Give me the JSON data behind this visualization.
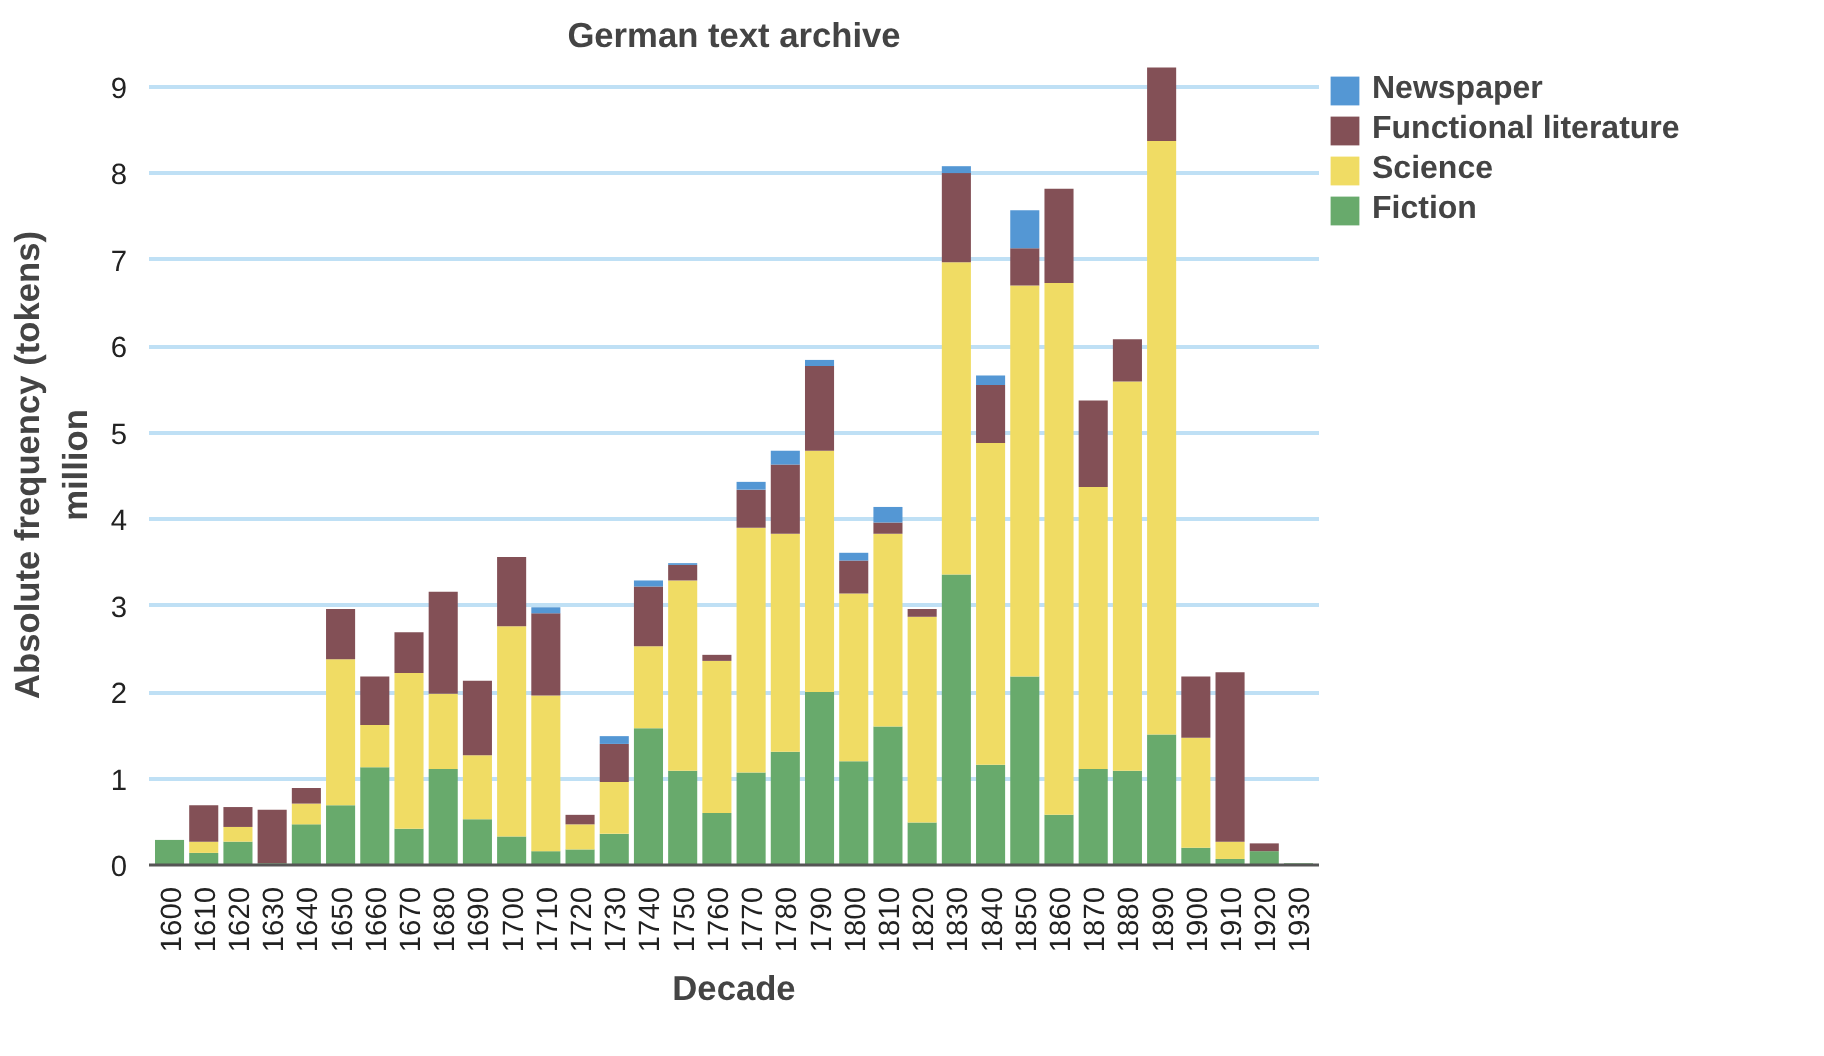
{
  "chart_data": {
    "type": "bar",
    "title": "German text archive",
    "xlabel": "Decade",
    "ylabel": "Absolute frequency (tokens)\nmillion",
    "categories": [
      "1600",
      "1610",
      "1620",
      "1630",
      "1640",
      "1650",
      "1660",
      "1670",
      "1680",
      "1690",
      "1700",
      "1710",
      "1720",
      "1730",
      "1740",
      "1750",
      "1760",
      "1770",
      "1780",
      "1790",
      "1800",
      "1810",
      "1820",
      "1830",
      "1840",
      "1850",
      "1860",
      "1870",
      "1880",
      "1890",
      "1900",
      "1910",
      "1920",
      "1930"
    ],
    "stacked": true,
    "ylim": [
      0,
      9.25
    ],
    "yticks": [
      0,
      1,
      2,
      3,
      4,
      5,
      6,
      7,
      8,
      9
    ],
    "grid": "y",
    "legend": "top right",
    "series": [
      {
        "name": "Fiction",
        "color": "#68aa6c",
        "values": [
          0.29,
          0.14,
          0.27,
          0.02,
          0.47,
          0.69,
          1.13,
          0.42,
          1.11,
          0.53,
          0.33,
          0.16,
          0.18,
          0.36,
          1.58,
          1.09,
          0.6,
          1.07,
          1.31,
          2.0,
          1.2,
          1.6,
          0.49,
          3.36,
          1.16,
          2.18,
          0.58,
          1.11,
          1.09,
          1.51,
          0.2,
          0.07,
          0.16,
          0.02
        ]
      },
      {
        "name": "Science",
        "color": "#f0dc64",
        "values": [
          0,
          0.13,
          0.17,
          0,
          0.24,
          1.69,
          0.49,
          1.8,
          0.87,
          0.74,
          2.43,
          1.8,
          0.29,
          0.6,
          0.95,
          2.2,
          1.76,
          2.83,
          2.52,
          2.79,
          1.94,
          2.23,
          2.38,
          3.61,
          3.72,
          4.52,
          6.15,
          3.26,
          4.5,
          6.86,
          1.27,
          0.2,
          0,
          0
        ]
      },
      {
        "name": "Functional literature",
        "color": "#835056",
        "values": [
          0,
          0.42,
          0.23,
          0.62,
          0.18,
          0.58,
          0.56,
          0.47,
          1.18,
          0.86,
          0.8,
          0.95,
          0.11,
          0.44,
          0.69,
          0.18,
          0.07,
          0.44,
          0.8,
          0.98,
          0.38,
          0.13,
          0.09,
          1.03,
          0.67,
          0.43,
          1.09,
          1.0,
          0.49,
          0.85,
          0.71,
          1.96,
          0.09,
          0
        ]
      },
      {
        "name": "Newspaper",
        "color": "#5497d4",
        "values": [
          0,
          0,
          0,
          0,
          0,
          0,
          0,
          0,
          0,
          0,
          0,
          0.07,
          0,
          0.09,
          0.07,
          0.02,
          0,
          0.09,
          0.16,
          0.07,
          0.09,
          0.18,
          0,
          0.08,
          0.11,
          0.44,
          0,
          0,
          0,
          0,
          0,
          0,
          0,
          0
        ]
      }
    ]
  }
}
